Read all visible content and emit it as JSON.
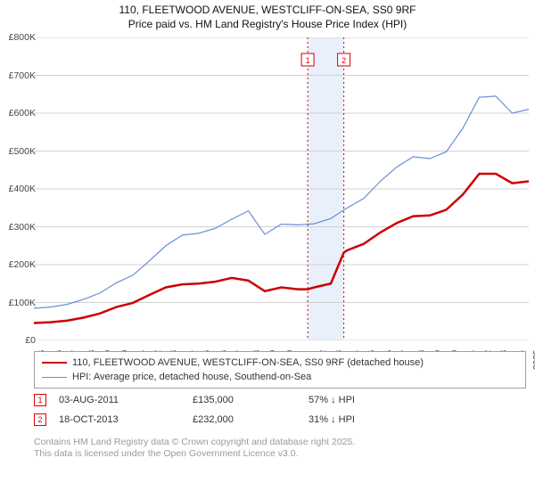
{
  "title": {
    "line1": "110, FLEETWOOD AVENUE, WESTCLIFF-ON-SEA, SS0 9RF",
    "line2": "Price paid vs. HM Land Registry's House Price Index (HPI)"
  },
  "chart": {
    "type": "line",
    "background_color": "#ffffff",
    "grid_color": "#d0d0d0",
    "x_axis": {
      "min": 1995,
      "max": 2025,
      "ticks": [
        1995,
        1996,
        1997,
        1998,
        1999,
        2000,
        2001,
        2002,
        2003,
        2004,
        2005,
        2006,
        2007,
        2008,
        2009,
        2010,
        2011,
        2012,
        2013,
        2014,
        2015,
        2016,
        2017,
        2018,
        2019,
        2020,
        2021,
        2022,
        2023,
        2024,
        2025
      ]
    },
    "y_axis": {
      "min": 0,
      "max": 800000,
      "ticks": [
        0,
        100000,
        200000,
        300000,
        400000,
        500000,
        600000,
        700000,
        800000
      ],
      "tick_labels": [
        "£0",
        "£100K",
        "£200K",
        "£300K",
        "£400K",
        "£500K",
        "£600K",
        "£700K",
        "£800K"
      ]
    },
    "highlight_band": {
      "start": 2011.6,
      "end": 2013.79,
      "color": "#e9f0fb"
    },
    "event_markers": [
      {
        "x": 2011.6,
        "label": "1",
        "color": "#d00000"
      },
      {
        "x": 2013.79,
        "label": "2",
        "color": "#d00000"
      }
    ],
    "series": [
      {
        "name": "price_paid",
        "label": "110, FLEETWOOD AVENUE, WESTCLIFF-ON-SEA, SS0 9RF (detached house)",
        "color": "#cc0000",
        "stroke_width": 2.5,
        "points": [
          [
            1995,
            46000
          ],
          [
            1996,
            48000
          ],
          [
            1997,
            52000
          ],
          [
            1998,
            60000
          ],
          [
            1999,
            71000
          ],
          [
            2000,
            88000
          ],
          [
            2001,
            99000
          ],
          [
            2002,
            120000
          ],
          [
            2003,
            140000
          ],
          [
            2004,
            148000
          ],
          [
            2005,
            150000
          ],
          [
            2006,
            155000
          ],
          [
            2007,
            165000
          ],
          [
            2008,
            158000
          ],
          [
            2009,
            130000
          ],
          [
            2010,
            140000
          ],
          [
            2011,
            135000
          ],
          [
            2011.6,
            135000
          ],
          [
            2012,
            140000
          ],
          [
            2013,
            150000
          ],
          [
            2013.79,
            232000
          ],
          [
            2014,
            238000
          ],
          [
            2015,
            255000
          ],
          [
            2016,
            285000
          ],
          [
            2017,
            310000
          ],
          [
            2018,
            328000
          ],
          [
            2019,
            330000
          ],
          [
            2020,
            345000
          ],
          [
            2021,
            385000
          ],
          [
            2022,
            440000
          ],
          [
            2023,
            440000
          ],
          [
            2024,
            415000
          ],
          [
            2025,
            420000
          ]
        ]
      },
      {
        "name": "hpi",
        "label": "HPI: Average price, detached house, Southend-on-Sea",
        "color": "#6a8fd4",
        "stroke_width": 1.2,
        "points": [
          [
            1995,
            85000
          ],
          [
            1996,
            88000
          ],
          [
            1997,
            95000
          ],
          [
            1998,
            108000
          ],
          [
            1999,
            125000
          ],
          [
            2000,
            152000
          ],
          [
            2001,
            172000
          ],
          [
            2002,
            210000
          ],
          [
            2003,
            250000
          ],
          [
            2004,
            278000
          ],
          [
            2005,
            283000
          ],
          [
            2006,
            296000
          ],
          [
            2007,
            320000
          ],
          [
            2008,
            342000
          ],
          [
            2009,
            280000
          ],
          [
            2010,
            307000
          ],
          [
            2011,
            305000
          ],
          [
            2012,
            308000
          ],
          [
            2013,
            322000
          ],
          [
            2014,
            350000
          ],
          [
            2015,
            375000
          ],
          [
            2016,
            420000
          ],
          [
            2017,
            458000
          ],
          [
            2018,
            485000
          ],
          [
            2019,
            480000
          ],
          [
            2020,
            498000
          ],
          [
            2021,
            560000
          ],
          [
            2022,
            642000
          ],
          [
            2023,
            645000
          ],
          [
            2024,
            600000
          ],
          [
            2025,
            610000
          ]
        ]
      }
    ]
  },
  "legend": {
    "items": [
      {
        "color": "#cc0000",
        "width": 2.5,
        "label": "110, FLEETWOOD AVENUE, WESTCLIFF-ON-SEA, SS0 9RF (detached house)"
      },
      {
        "color": "#6a8fd4",
        "width": 1.2,
        "label": "HPI: Average price, detached house, Southend-on-Sea"
      }
    ]
  },
  "transactions": [
    {
      "marker": "1",
      "date": "03-AUG-2011",
      "price": "£135,000",
      "delta": "57% ↓ HPI"
    },
    {
      "marker": "2",
      "date": "18-OCT-2013",
      "price": "£232,000",
      "delta": "31% ↓ HPI"
    }
  ],
  "footer": {
    "line1": "Contains HM Land Registry data © Crown copyright and database right 2025.",
    "line2": "This data is licensed under the Open Government Licence v3.0."
  }
}
